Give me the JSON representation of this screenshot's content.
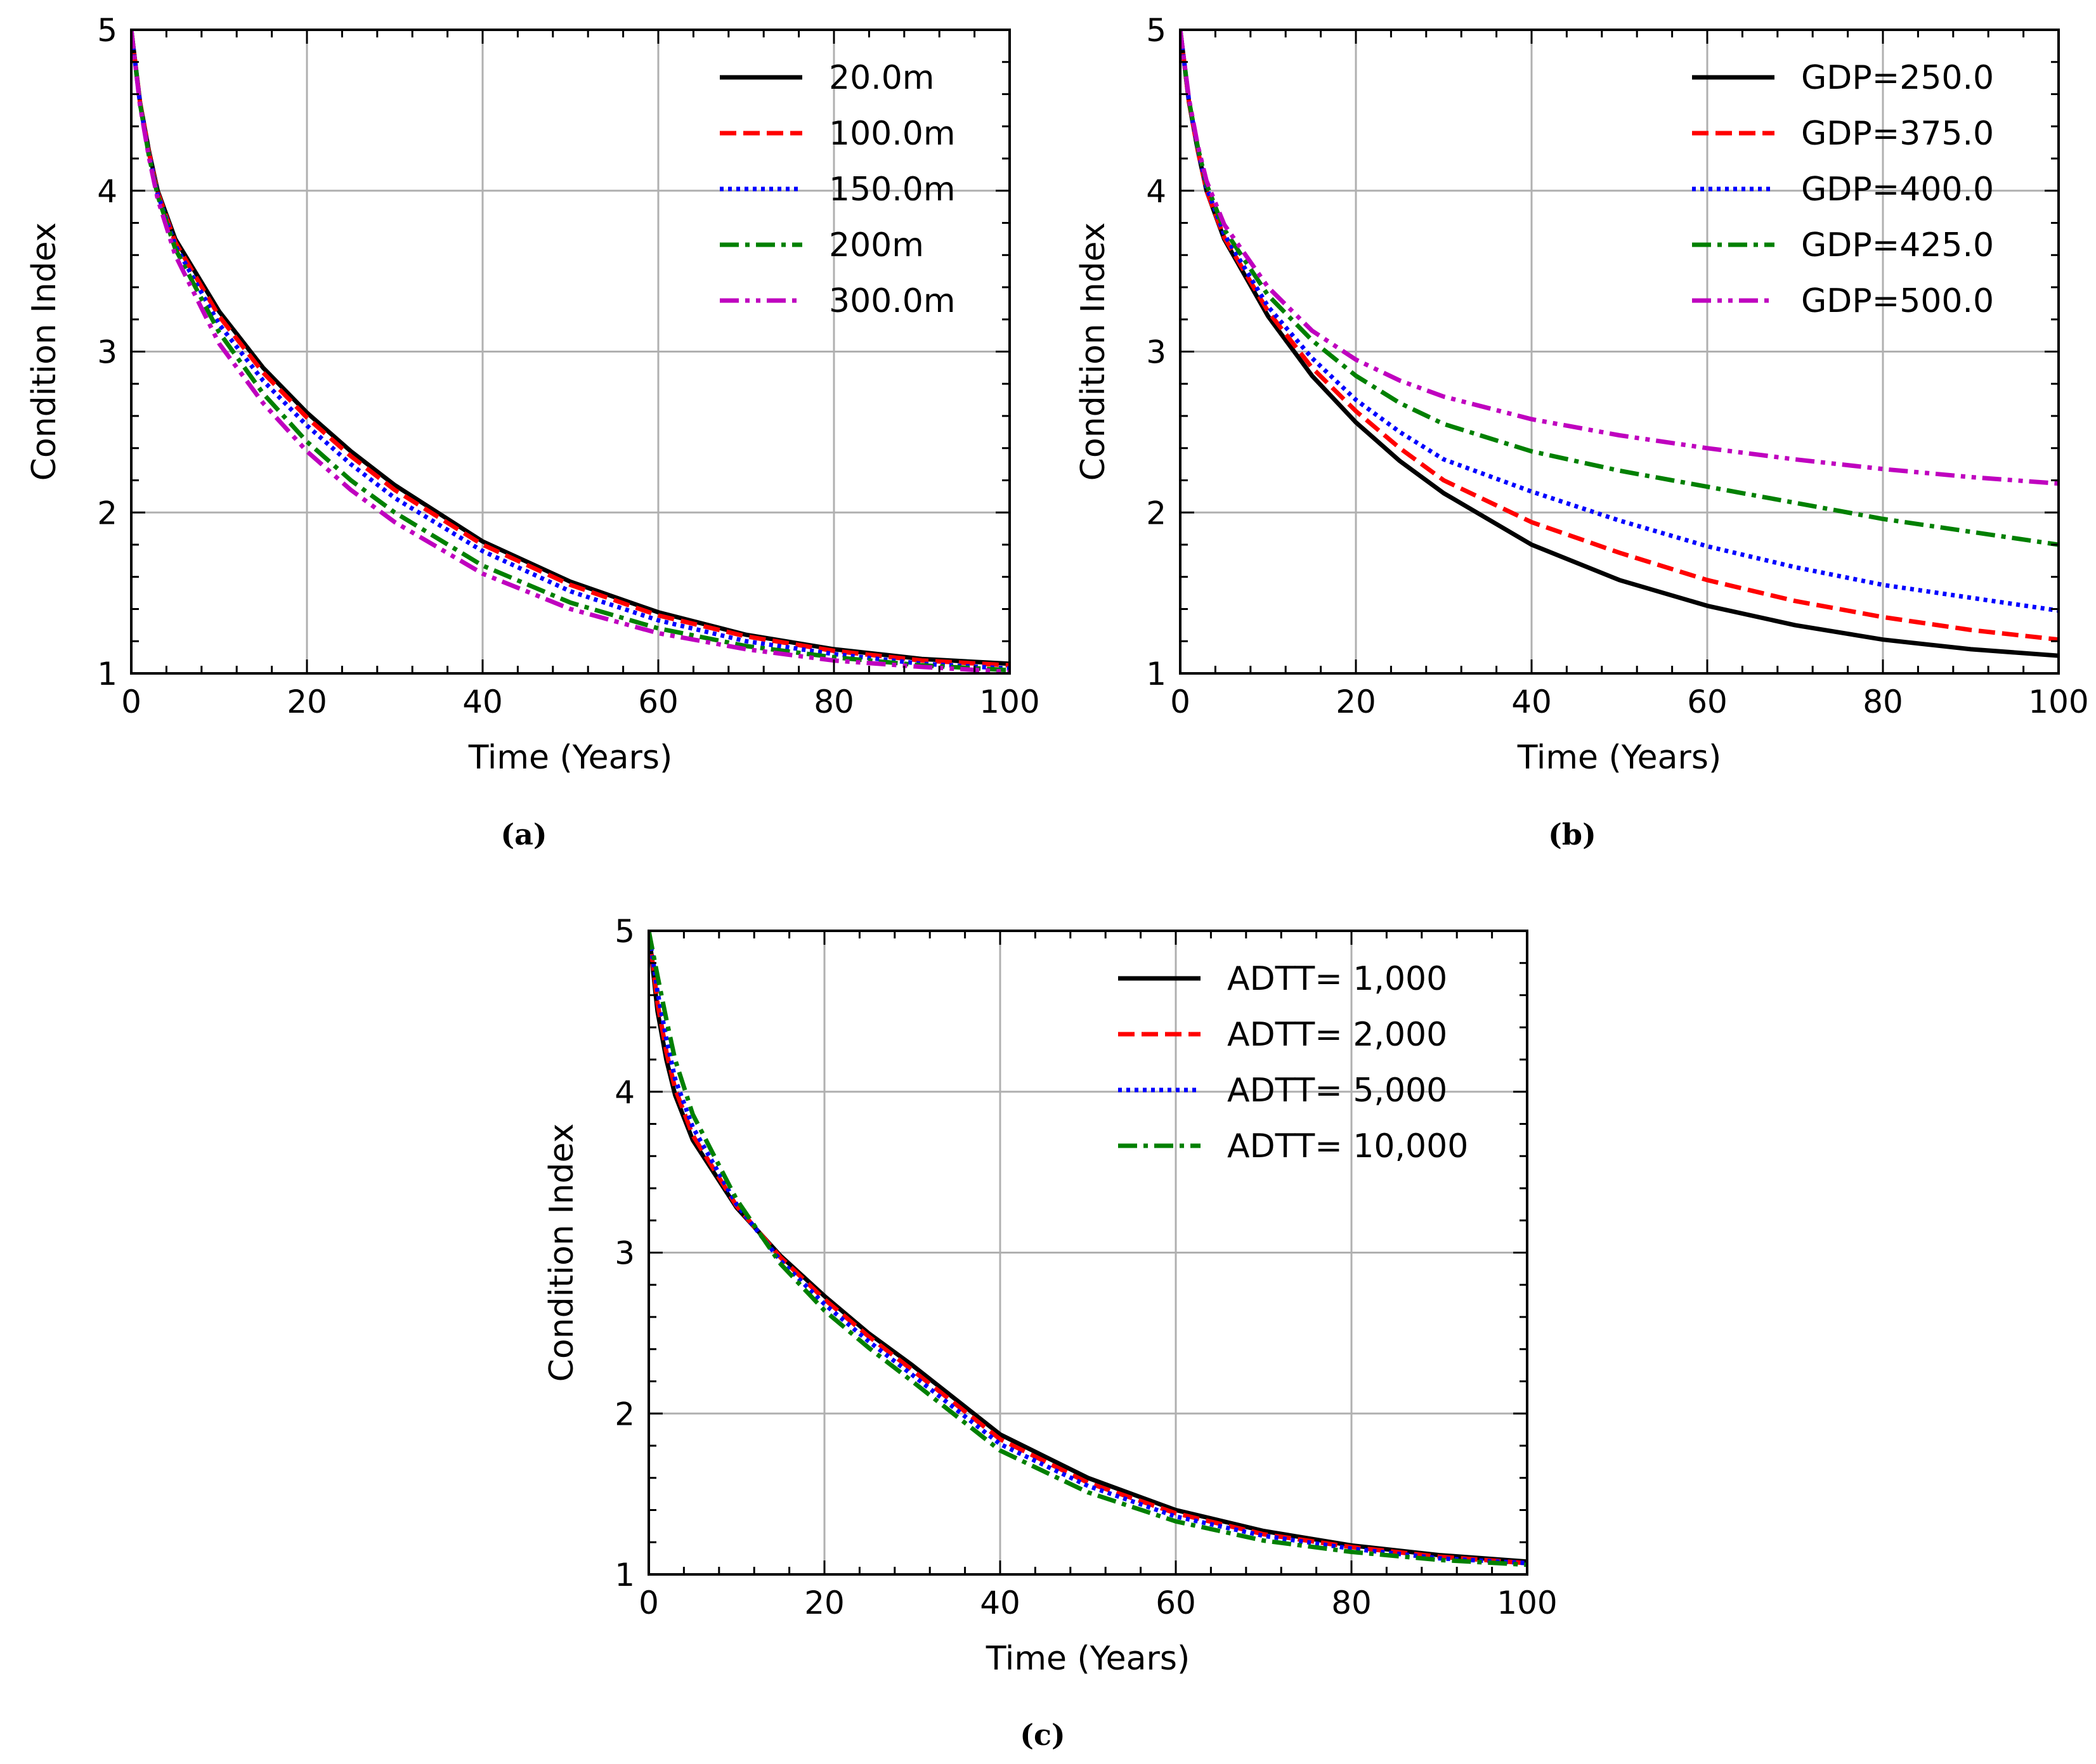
{
  "colors": {
    "black": "#000000",
    "red": "#ff0000",
    "blue": "#0000ff",
    "green": "#008000",
    "magenta": "#bf00bf",
    "grid": "#b0b0b0"
  },
  "chart_data": [
    {
      "id": "a",
      "type": "line",
      "caption": "(a)",
      "xlabel": "Time (Years)",
      "ylabel": "Condition Index",
      "xlim": [
        0,
        100
      ],
      "ylim": [
        1,
        5
      ],
      "xticks": [
        "0",
        "20",
        "40",
        "60",
        "80",
        "100"
      ],
      "yticks": [
        "1",
        "2",
        "3",
        "4",
        "5"
      ],
      "grid": true,
      "legend": "top-right",
      "x": [
        0,
        1,
        2,
        3,
        5,
        10,
        15,
        20,
        25,
        30,
        40,
        50,
        60,
        70,
        80,
        90,
        100
      ],
      "series": [
        {
          "name": "20.0m",
          "style": "solid",
          "color": "#000000",
          "values": [
            5.0,
            4.55,
            4.25,
            4.0,
            3.7,
            3.25,
            2.9,
            2.62,
            2.38,
            2.17,
            1.82,
            1.57,
            1.38,
            1.24,
            1.15,
            1.09,
            1.06
          ]
        },
        {
          "name": "100.0m",
          "style": "dashed",
          "color": "#ff0000",
          "values": [
            5.0,
            4.55,
            4.24,
            3.99,
            3.68,
            3.22,
            2.87,
            2.59,
            2.35,
            2.14,
            1.8,
            1.55,
            1.36,
            1.23,
            1.14,
            1.08,
            1.05
          ]
        },
        {
          "name": "150.0m",
          "style": "dotted",
          "color": "#0000ff",
          "values": [
            5.0,
            4.54,
            4.23,
            3.98,
            3.66,
            3.17,
            2.82,
            2.54,
            2.3,
            2.09,
            1.76,
            1.51,
            1.33,
            1.2,
            1.12,
            1.06,
            1.03
          ]
        },
        {
          "name": "200m",
          "style": "dashdot",
          "color": "#008000",
          "values": [
            5.0,
            4.54,
            4.22,
            3.97,
            3.64,
            3.12,
            2.74,
            2.44,
            2.2,
            2.0,
            1.67,
            1.44,
            1.28,
            1.17,
            1.1,
            1.05,
            1.02
          ]
        },
        {
          "name": "300.0m",
          "style": "dashdotdot",
          "color": "#bf00bf",
          "values": [
            5.0,
            4.53,
            4.21,
            3.95,
            3.6,
            3.05,
            2.68,
            2.38,
            2.14,
            1.94,
            1.62,
            1.4,
            1.25,
            1.15,
            1.08,
            1.04,
            1.01
          ]
        }
      ]
    },
    {
      "id": "b",
      "type": "line",
      "caption": "(b)",
      "xlabel": "Time (Years)",
      "ylabel": "Condition Index",
      "xlim": [
        0,
        100
      ],
      "ylim": [
        1,
        5
      ],
      "xticks": [
        "0",
        "20",
        "40",
        "60",
        "80",
        "100"
      ],
      "yticks": [
        "1",
        "2",
        "3",
        "4",
        "5"
      ],
      "grid": true,
      "legend": "top-right",
      "x": [
        0,
        1,
        2,
        3,
        5,
        10,
        15,
        20,
        25,
        30,
        40,
        50,
        60,
        70,
        80,
        90,
        100
      ],
      "series": [
        {
          "name": "GDP=250.0",
          "style": "solid",
          "color": "#000000",
          "values": [
            5.0,
            4.55,
            4.25,
            4.0,
            3.7,
            3.22,
            2.85,
            2.56,
            2.32,
            2.12,
            1.8,
            1.58,
            1.42,
            1.3,
            1.21,
            1.15,
            1.11
          ]
        },
        {
          "name": "GDP=375.0",
          "style": "dashed",
          "color": "#ff0000",
          "values": [
            5.0,
            4.55,
            4.25,
            4.0,
            3.71,
            3.25,
            2.9,
            2.63,
            2.4,
            2.2,
            1.94,
            1.75,
            1.58,
            1.45,
            1.35,
            1.27,
            1.21
          ]
        },
        {
          "name": "GDP=400.0",
          "style": "dotted",
          "color": "#0000ff",
          "values": [
            5.0,
            4.56,
            4.26,
            4.02,
            3.73,
            3.28,
            2.96,
            2.7,
            2.5,
            2.33,
            2.13,
            1.95,
            1.79,
            1.66,
            1.55,
            1.47,
            1.39
          ]
        },
        {
          "name": "GDP=425.0",
          "style": "dashdot",
          "color": "#008000",
          "values": [
            5.0,
            4.56,
            4.27,
            4.04,
            3.76,
            3.35,
            3.07,
            2.85,
            2.68,
            2.55,
            2.38,
            2.26,
            2.16,
            2.06,
            1.96,
            1.88,
            1.8
          ]
        },
        {
          "name": "GDP=500.0",
          "style": "dashdotdot",
          "color": "#bf00bf",
          "values": [
            5.0,
            4.57,
            4.28,
            4.06,
            3.79,
            3.4,
            3.13,
            2.95,
            2.82,
            2.72,
            2.58,
            2.48,
            2.4,
            2.33,
            2.27,
            2.22,
            2.18
          ]
        }
      ]
    },
    {
      "id": "c",
      "type": "line",
      "caption": "(c)",
      "xlabel": "Time (Years)",
      "ylabel": "Condition Index",
      "xlim": [
        0,
        100
      ],
      "ylim": [
        1,
        5
      ],
      "xticks": [
        "0",
        "20",
        "40",
        "60",
        "80",
        "100"
      ],
      "yticks": [
        "1",
        "2",
        "3",
        "4",
        "5"
      ],
      "grid": true,
      "legend": "top-right",
      "x": [
        0,
        1,
        2,
        3,
        5,
        10,
        15,
        20,
        25,
        30,
        40,
        50,
        60,
        70,
        80,
        90,
        100
      ],
      "series": [
        {
          "name": "ADTT= 1,000",
          "style": "solid",
          "color": "#000000",
          "values": [
            5.0,
            4.5,
            4.2,
            3.98,
            3.7,
            3.28,
            2.98,
            2.73,
            2.5,
            2.3,
            1.87,
            1.6,
            1.4,
            1.27,
            1.18,
            1.12,
            1.08
          ]
        },
        {
          "name": "ADTT= 2,000",
          "style": "dashed",
          "color": "#ff0000",
          "values": [
            5.0,
            4.55,
            4.25,
            4.02,
            3.73,
            3.29,
            2.97,
            2.71,
            2.48,
            2.27,
            1.84,
            1.57,
            1.38,
            1.25,
            1.17,
            1.11,
            1.07
          ]
        },
        {
          "name": "ADTT= 5,000",
          "style": "dotted",
          "color": "#0000ff",
          "values": [
            5.0,
            4.62,
            4.33,
            4.08,
            3.78,
            3.3,
            2.95,
            2.68,
            2.45,
            2.24,
            1.81,
            1.55,
            1.36,
            1.24,
            1.16,
            1.1,
            1.07
          ]
        },
        {
          "name": "ADTT= 10,000",
          "style": "dashdot",
          "color": "#008000",
          "values": [
            5.0,
            4.72,
            4.45,
            4.2,
            3.86,
            3.33,
            2.93,
            2.64,
            2.41,
            2.2,
            1.77,
            1.51,
            1.33,
            1.21,
            1.14,
            1.09,
            1.06
          ]
        }
      ]
    }
  ]
}
